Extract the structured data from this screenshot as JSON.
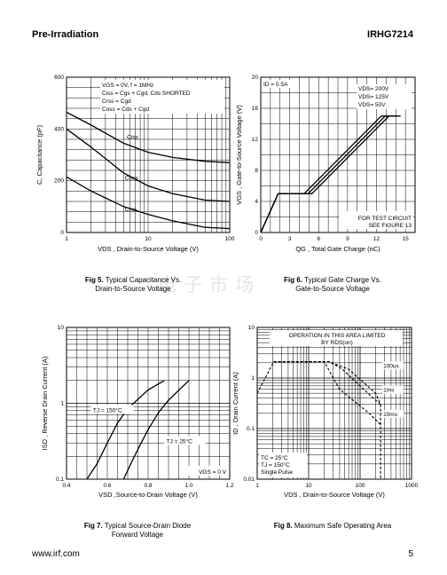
{
  "header": {
    "left": "Pre-Irradiation",
    "right": "IRHG7214"
  },
  "watermark": "电子市场",
  "footer": {
    "url": "www.irf.com",
    "page": "5"
  },
  "figures": [
    {
      "caption_num": "Fig 5.",
      "caption_line1": "Typical Capacitance Vs.",
      "caption_line2": "Drain-to-Source Voltage",
      "xlabel": "V_DS , Drain-to-Source Voltage (V)",
      "ylabel": "C, Capacitance (pF)",
      "note_lines": [
        "VGS = 0V,     f = 1MHz",
        "Ciss = Cgs + Cgd, Cds SHORTED",
        "Crss = Cgd",
        "Coss = Cds + Cgd"
      ]
    },
    {
      "caption_num": "Fig 6.",
      "caption_line1": "Typical Gate Charge Vs.",
      "caption_line2": "Gate-to-Source Voltage",
      "xlabel": "Q_G , Total Gate Charge (nC)",
      "ylabel": "V_GS , Gate-to-Source Voltage (V)",
      "note_id": "ID = 0.5A",
      "note_test1": "FOR TEST CIRCUIT",
      "note_test2": "SEE FIGURE  13"
    },
    {
      "caption_num": "Fig 7.",
      "caption_line1": "Typical Source-Drain Diode",
      "caption_line2": "Forward Voltage",
      "xlabel": "V_SD ,Source-to-Drain Voltage (V)",
      "ylabel": "I_SD , Reverse Drain Current (A)",
      "note_vgs": "VGS = 0 V"
    },
    {
      "caption_num": "Fig 8.",
      "caption_line1": "Maximum Safe Operating Area",
      "caption_line2": "",
      "xlabel": "V_DS , Drain-to-Source Voltage (V)",
      "ylabel": "I_D , Drain Current (A)",
      "note_op1": "OPERATION IN THIS AREA LIMITED",
      "note_op2": "BY RDS(on)",
      "note_tc1": "TC = 25°C",
      "note_tc2": "TJ = 150°C",
      "note_tc3": "Single Pulse"
    }
  ],
  "chart_data": [
    {
      "type": "line",
      "title": "",
      "xlabel": "VDS , Drain-to-Source Voltage (V)",
      "ylabel": "C, Capacitance (pF)",
      "xscale": "log",
      "xlim": [
        1,
        100
      ],
      "ylim": [
        0,
        600
      ],
      "xticks": [
        "1",
        "10",
        "100"
      ],
      "yticks": [
        "0",
        "200",
        "400",
        "600"
      ],
      "grid": true,
      "series": [
        {
          "name": "Ciss",
          "x": [
            1,
            2,
            5,
            10,
            20,
            50,
            100
          ],
          "y": [
            465,
            415,
            345,
            310,
            290,
            275,
            270
          ]
        },
        {
          "name": "Coss",
          "x": [
            1,
            2,
            5,
            10,
            20,
            50,
            100
          ],
          "y": [
            400,
            330,
            230,
            180,
            150,
            125,
            120
          ]
        },
        {
          "name": "Crss",
          "x": [
            1,
            2,
            5,
            10,
            20,
            50,
            100
          ],
          "y": [
            215,
            160,
            100,
            70,
            45,
            20,
            15
          ]
        }
      ],
      "annotations": [
        "VGS = 0V,     f = 1MHz",
        "Ciss = Cgs + Cgd, Cds SHORTED",
        "Crss = Cgd",
        "Coss = Cds + Cgd"
      ]
    },
    {
      "type": "line",
      "title": "",
      "xlabel": "QG , Total Gate Charge (nC)",
      "ylabel": "VGS , Gate-to-Source Voltage (V)",
      "xlim": [
        0,
        16
      ],
      "ylim": [
        0,
        20
      ],
      "xticks": [
        "0",
        "3",
        "6",
        "9",
        "12",
        "15"
      ],
      "yticks": [
        "0",
        "4",
        "8",
        "12",
        "16",
        "20"
      ],
      "grid": true,
      "series": [
        {
          "name": "VDS= 200V",
          "x": [
            0,
            1.8,
            5.3,
            13.3,
            14.5
          ],
          "y": [
            0,
            5,
            5,
            15,
            15
          ]
        },
        {
          "name": "VDS= 125V",
          "x": [
            0,
            1.8,
            4.9,
            12.9,
            14.1
          ],
          "y": [
            0,
            5,
            5,
            15,
            15
          ]
        },
        {
          "name": "VDS= 50V",
          "x": [
            0,
            1.8,
            4.5,
            12.5,
            13.7
          ],
          "y": [
            0,
            5,
            5,
            15,
            15
          ]
        }
      ],
      "annotations": [
        "ID = 0.5A",
        "FOR TEST CIRCUIT",
        "SEE FIGURE  13"
      ]
    },
    {
      "type": "line",
      "title": "",
      "xlabel": "VSD ,Source-to-Drain Voltage (V)",
      "ylabel": "ISD , Reverse Drain Current (A)",
      "yscale": "log",
      "xlim": [
        0.4,
        1.2
      ],
      "ylim": [
        0.1,
        10
      ],
      "xticks": [
        "0.4",
        "0.6",
        "0.8",
        "1.0",
        "1.2"
      ],
      "yticks": [
        "0.1",
        "1",
        "10"
      ],
      "grid": true,
      "series": [
        {
          "name": "TJ = 150°C",
          "x": [
            0.5,
            0.55,
            0.6,
            0.65,
            0.7,
            0.8,
            0.88
          ],
          "y": [
            0.1,
            0.16,
            0.3,
            0.55,
            0.85,
            1.5,
            2
          ]
        },
        {
          "name": "TJ = 25°C",
          "x": [
            0.68,
            0.72,
            0.76,
            0.8,
            0.85,
            0.9,
            1.0
          ],
          "y": [
            0.1,
            0.17,
            0.28,
            0.45,
            0.75,
            1.1,
            2
          ]
        }
      ],
      "annotations": [
        "VGS = 0 V"
      ]
    },
    {
      "type": "line",
      "title": "",
      "xlabel": "VDS , Drain-to-Source Voltage (V)",
      "ylabel": "ID , Drain Current (A)",
      "xscale": "log",
      "yscale": "log",
      "xlim": [
        1,
        1000
      ],
      "ylim": [
        0.01,
        10
      ],
      "xticks": [
        "1",
        "10",
        "100",
        "1000"
      ],
      "yticks": [
        "0.01",
        "0.1",
        "1",
        "10"
      ],
      "grid": true,
      "series": [
        {
          "name": "RDS(on) limit",
          "x": [
            1,
            2.1
          ],
          "y": [
            0.5,
            2.1
          ]
        },
        {
          "name": "100us",
          "x": [
            2.1,
            25,
            60,
            200,
            250
          ],
          "y": [
            2.1,
            2.1,
            1.5,
            0.5,
            0.3
          ]
        },
        {
          "name": "1ms",
          "x": [
            2.1,
            25,
            45,
            180,
            250
          ],
          "y": [
            2.1,
            2.1,
            1.5,
            0.4,
            0.3
          ]
        },
        {
          "name": "10ms",
          "x": [
            2.1,
            20,
            40,
            150,
            250
          ],
          "y": [
            2.1,
            2.1,
            0.6,
            0.2,
            0.12
          ]
        },
        {
          "name": "limit",
          "x": [
            250,
            250
          ],
          "y": [
            0.3,
            0.01
          ]
        }
      ],
      "annotations": [
        "OPERATION IN THIS AREA LIMITED",
        "BY RDS(on)",
        "100us",
        "1ms",
        "10ms",
        "TC = 25°C",
        "TJ = 150°C",
        "Single Pulse"
      ]
    }
  ]
}
